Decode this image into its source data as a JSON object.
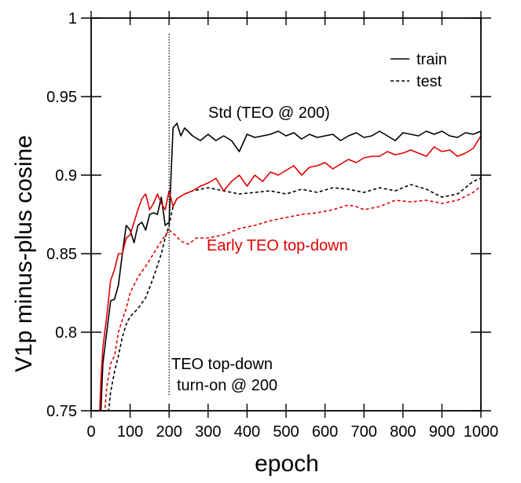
{
  "chart_data": {
    "type": "line",
    "xlabel": "epoch",
    "ylabel": "V1p minus-plus cosine",
    "xlim": [
      0,
      1000
    ],
    "ylim": [
      0.75,
      1.0
    ],
    "xticks": [
      0,
      100,
      200,
      300,
      400,
      500,
      600,
      700,
      800,
      900,
      1000
    ],
    "yticks": [
      0.75,
      0.8,
      0.85,
      0.9,
      0.95,
      1
    ],
    "xtick_labels": [
      "0",
      "100",
      "200",
      "300",
      "400",
      "500",
      "600",
      "700",
      "800",
      "900",
      "1000"
    ],
    "ytick_labels": [
      "0.75",
      "0.8",
      "0.85",
      "0.9",
      "0.95",
      "1"
    ],
    "grid": false,
    "legend": {
      "placement": "top-right",
      "entries": [
        {
          "label": "train",
          "style": "solid"
        },
        {
          "label": "test",
          "style": "dashed"
        }
      ]
    },
    "annotations": {
      "std": "Std (TEO @ 200)",
      "early": "Early TEO top-down",
      "vline_line1": "TEO top-down",
      "vline_line2": "turn-on @ 200"
    },
    "vline_x": 200,
    "colors": {
      "std": "#000000",
      "early": "#e00000"
    },
    "series": [
      {
        "group": "std",
        "style": "solid",
        "x": [
          0,
          25,
          30,
          40,
          50,
          60,
          70,
          80,
          90,
          100,
          110,
          120,
          130,
          140,
          150,
          160,
          170,
          180,
          190,
          200,
          210,
          220,
          230,
          240,
          260,
          280,
          300,
          320,
          340,
          360,
          380,
          400,
          420,
          440,
          460,
          480,
          500,
          520,
          540,
          560,
          580,
          600,
          620,
          640,
          660,
          680,
          700,
          720,
          740,
          760,
          780,
          800,
          820,
          840,
          860,
          880,
          900,
          920,
          940,
          960,
          980,
          1000
        ],
        "values": [
          0.75,
          0.75,
          0.78,
          0.8,
          0.82,
          0.821,
          0.83,
          0.85,
          0.868,
          0.865,
          0.857,
          0.868,
          0.87,
          0.865,
          0.875,
          0.876,
          0.875,
          0.886,
          0.868,
          0.87,
          0.93,
          0.933,
          0.925,
          0.93,
          0.925,
          0.922,
          0.926,
          0.922,
          0.925,
          0.922,
          0.915,
          0.926,
          0.924,
          0.925,
          0.926,
          0.928,
          0.925,
          0.927,
          0.923,
          0.926,
          0.924,
          0.925,
          0.926,
          0.922,
          0.925,
          0.927,
          0.924,
          0.925,
          0.928,
          0.925,
          0.922,
          0.927,
          0.926,
          0.925,
          0.928,
          0.926,
          0.928,
          0.925,
          0.924,
          0.927,
          0.926,
          0.928
        ]
      },
      {
        "group": "std",
        "style": "dashed",
        "x": [
          0,
          45,
          50,
          60,
          70,
          80,
          90,
          100,
          120,
          140,
          160,
          180,
          190,
          200,
          210,
          220,
          240,
          260,
          280,
          300,
          340,
          380,
          420,
          460,
          500,
          540,
          580,
          620,
          660,
          700,
          740,
          780,
          820,
          860,
          900,
          940,
          980,
          1000
        ],
        "values": [
          0.75,
          0.75,
          0.762,
          0.775,
          0.785,
          0.797,
          0.805,
          0.81,
          0.815,
          0.822,
          0.835,
          0.85,
          0.86,
          0.868,
          0.88,
          0.885,
          0.888,
          0.89,
          0.891,
          0.892,
          0.89,
          0.888,
          0.889,
          0.89,
          0.888,
          0.891,
          0.889,
          0.892,
          0.891,
          0.889,
          0.892,
          0.89,
          0.894,
          0.891,
          0.886,
          0.888,
          0.896,
          0.898
        ]
      },
      {
        "group": "early",
        "style": "solid",
        "x": [
          0,
          22,
          25,
          30,
          40,
          50,
          60,
          70,
          80,
          90,
          100,
          110,
          120,
          130,
          140,
          150,
          160,
          170,
          180,
          190,
          200,
          210,
          220,
          240,
          260,
          280,
          300,
          320,
          340,
          360,
          380,
          400,
          420,
          440,
          460,
          480,
          500,
          520,
          540,
          560,
          580,
          600,
          620,
          640,
          660,
          680,
          700,
          720,
          740,
          760,
          780,
          800,
          820,
          840,
          860,
          880,
          900,
          920,
          940,
          960,
          980,
          1000
        ],
        "values": [
          0.75,
          0.75,
          0.77,
          0.79,
          0.81,
          0.833,
          0.84,
          0.85,
          0.85,
          0.86,
          0.862,
          0.87,
          0.878,
          0.885,
          0.888,
          0.878,
          0.882,
          0.888,
          0.882,
          0.878,
          0.89,
          0.88,
          0.885,
          0.888,
          0.89,
          0.893,
          0.895,
          0.898,
          0.89,
          0.896,
          0.9,
          0.893,
          0.9,
          0.896,
          0.902,
          0.9,
          0.903,
          0.906,
          0.9,
          0.905,
          0.906,
          0.908,
          0.904,
          0.907,
          0.91,
          0.908,
          0.911,
          0.912,
          0.912,
          0.915,
          0.913,
          0.914,
          0.916,
          0.914,
          0.912,
          0.918,
          0.915,
          0.916,
          0.912,
          0.914,
          0.917,
          0.925
        ]
      },
      {
        "group": "early",
        "style": "dashed",
        "x": [
          0,
          35,
          40,
          50,
          60,
          70,
          80,
          90,
          100,
          120,
          140,
          160,
          180,
          200,
          215,
          230,
          250,
          270,
          300,
          340,
          380,
          420,
          460,
          500,
          540,
          580,
          620,
          660,
          680,
          700,
          740,
          780,
          820,
          860,
          900,
          940,
          980,
          1000
        ],
        "values": [
          0.75,
          0.75,
          0.765,
          0.78,
          0.785,
          0.8,
          0.808,
          0.815,
          0.825,
          0.835,
          0.842,
          0.85,
          0.858,
          0.865,
          0.862,
          0.858,
          0.856,
          0.86,
          0.86,
          0.862,
          0.866,
          0.868,
          0.871,
          0.873,
          0.875,
          0.876,
          0.878,
          0.881,
          0.88,
          0.878,
          0.88,
          0.884,
          0.883,
          0.884,
          0.882,
          0.884,
          0.889,
          0.893
        ]
      }
    ]
  }
}
